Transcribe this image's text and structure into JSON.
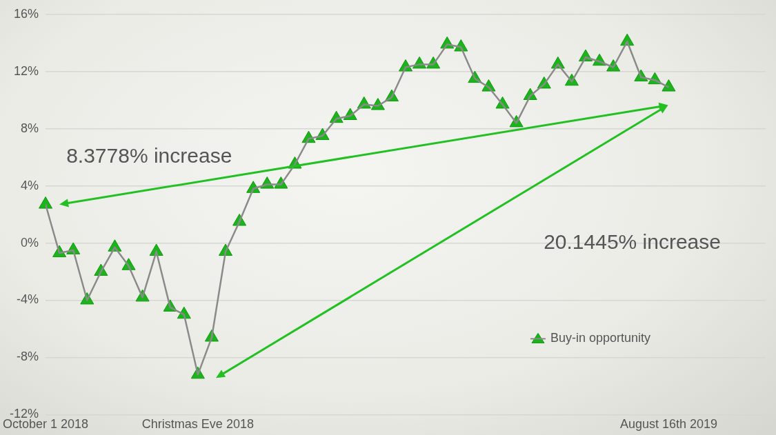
{
  "chart_data": {
    "type": "line",
    "categories": [
      "October 1 2018",
      null,
      null,
      null,
      null,
      null,
      null,
      null,
      null,
      null,
      null,
      "Christmas Eve 2018",
      null,
      null,
      null,
      null,
      null,
      null,
      null,
      null,
      null,
      null,
      null,
      null,
      null,
      null,
      null,
      null,
      null,
      null,
      null,
      null,
      null,
      null,
      null,
      null,
      null,
      null,
      null,
      null,
      null,
      null,
      null,
      null,
      null,
      "August 16th 2019"
    ],
    "series": [
      {
        "name": "Buy-in opportunity",
        "color": "#1db31d",
        "values": [
          2.7,
          -0.7,
          -0.5,
          -4.0,
          -2.0,
          -0.3,
          -1.6,
          -3.8,
          -0.6,
          -4.5,
          -5.0,
          -9.2,
          -6.6,
          -0.6,
          1.5,
          3.8,
          4.1,
          4.1,
          5.5,
          7.3,
          7.5,
          8.7,
          8.9,
          9.7,
          9.6,
          10.2,
          12.3,
          12.5,
          12.5,
          13.9,
          13.7,
          11.5,
          10.9,
          9.7,
          8.4,
          10.3,
          11.1,
          12.5,
          11.3,
          13.0,
          12.7,
          12.3,
          14.1,
          11.6,
          11.4,
          10.9
        ]
      }
    ],
    "ylim": [
      -12,
      16
    ],
    "yticks": [
      {
        "value": -12,
        "label": "-12%"
      },
      {
        "value": -8,
        "label": "-8%"
      },
      {
        "value": -4,
        "label": "-4%"
      },
      {
        "value": 0,
        "label": "0%"
      },
      {
        "value": 4,
        "label": "4%"
      },
      {
        "value": 8,
        "label": "8%"
      },
      {
        "value": 12,
        "label": "12%"
      },
      {
        "value": 16,
        "label": "16%"
      }
    ],
    "grid": "y",
    "marker": "triangle",
    "line_style": "solid",
    "legend": "bottom right",
    "annotations": [
      "8.3778% increase",
      "20.1445% increase"
    ]
  }
}
